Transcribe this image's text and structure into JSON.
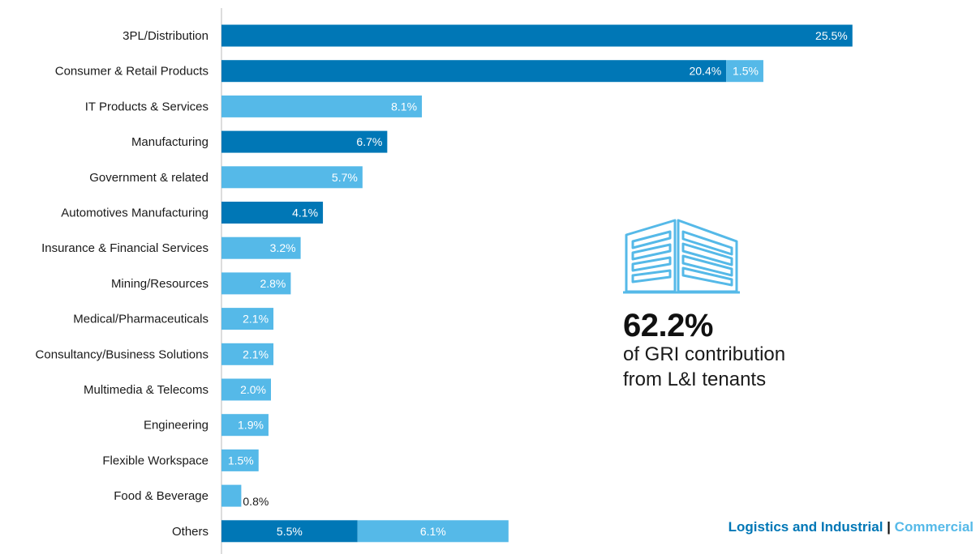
{
  "colors": {
    "logistics_industrial": "#0077b6",
    "commercial": "#55b9e8",
    "axis": "#bbbbbb",
    "label_inside": "#ffffff",
    "label_outside": "#1a1a1a"
  },
  "chart_data": {
    "type": "bar",
    "orientation": "horizontal",
    "stacked": true,
    "categories": [
      "3PL/Distribution",
      "Consumer & Retail Products",
      "IT Products & Services",
      "Manufacturing",
      "Government & related",
      "Automotives Manufacturing",
      "Insurance & Financial Services",
      "Mining/Resources",
      "Medical/Pharmaceuticals",
      "Consultancy/Business Solutions",
      "Multimedia & Telecoms",
      "Engineering",
      "Flexible Workspace",
      "Food & Beverage",
      "Others"
    ],
    "series": [
      {
        "name": "Logistics and Industrial",
        "values": [
          25.5,
          20.4,
          0,
          6.7,
          0,
          4.1,
          0,
          0,
          0,
          0,
          0,
          0,
          0,
          0,
          5.5
        ],
        "labels": [
          "25.5%",
          "20.4%",
          "",
          "6.7%",
          "",
          "4.1%",
          "",
          "",
          "",
          "",
          "",
          "",
          "",
          "",
          "5.5%"
        ]
      },
      {
        "name": "Commercial",
        "values": [
          0,
          1.5,
          8.1,
          0,
          5.7,
          0,
          3.2,
          2.8,
          2.1,
          2.1,
          2.0,
          1.9,
          1.5,
          0.8,
          6.1
        ],
        "labels": [
          "",
          "1.5%",
          "8.1%",
          "",
          "5.7%",
          "",
          "3.2%",
          "2.8%",
          "2.1%",
          "2.1%",
          "2.0%",
          "1.9%",
          "1.5%",
          "0.8%",
          "6.1%"
        ]
      }
    ],
    "xlim": [
      0,
      27.5
    ],
    "grid": false,
    "legend_position": "bottom-right"
  },
  "callout": {
    "icon": "building-icon",
    "value": "62.2%",
    "line1": "of GRI contribution",
    "line2": "from L&I tenants"
  },
  "legend": {
    "item1": "Logistics and Industrial",
    "separator": "|",
    "item2": "Commercial"
  }
}
